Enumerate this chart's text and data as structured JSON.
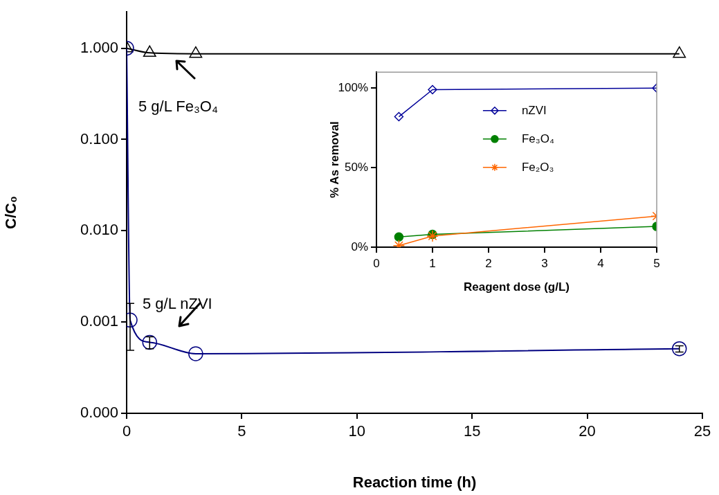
{
  "chart_data": [
    {
      "type": "line",
      "xlabel": "Reaction time (h)",
      "ylabel": "C/C₀",
      "log": "y",
      "grid": false,
      "legend": false,
      "xlim": [
        0,
        25
      ],
      "xticks": [
        0,
        5,
        10,
        15,
        20,
        25
      ],
      "ylim": [
        0.0001,
        2.5
      ],
      "yticks": [
        {
          "value": 0.0001,
          "label": "0.000"
        },
        {
          "value": 0.001,
          "label": "0.001"
        },
        {
          "value": 0.01,
          "label": "0.010"
        },
        {
          "value": 0.1,
          "label": "0.100"
        },
        {
          "value": 1,
          "label": "1.000"
        }
      ],
      "series": [
        {
          "color": "#000000",
          "marker": "triangle",
          "x": [
            0,
            1,
            3,
            24
          ],
          "values": [
            1,
            0.89,
            0.87,
            0.87
          ]
        },
        {
          "color": "#000080",
          "marker": "circle",
          "x": [
            0,
            0.15,
            1,
            3,
            24
          ],
          "values": [
            1,
            0.00105,
            0.0006,
            0.00045,
            0.00051
          ],
          "errors": [
            null,
            [
              0.00049,
              0.0016
            ],
            [
              0.00051,
              0.00069
            ],
            null,
            [
              0.00047,
              0.00055
            ]
          ]
        }
      ],
      "annotations": [
        "5 g/L Fe₃O₄",
        "5 g/L nZVI"
      ]
    },
    {
      "type": "line",
      "xlabel": "Reagent dose (g/L)",
      "ylabel": "% As removal",
      "grid": false,
      "legend": "right",
      "xlim": [
        0,
        5
      ],
      "xticks": [
        0,
        1,
        2,
        3,
        4,
        5
      ],
      "ylim": [
        0,
        110
      ],
      "yticks": [
        {
          "value": 0,
          "label": "0%"
        },
        {
          "value": 50,
          "label": "50%"
        },
        {
          "value": 100,
          "label": "100%"
        }
      ],
      "series": [
        {
          "name": "nZVI",
          "color": "#000099",
          "marker": "diamond",
          "x": [
            0.4,
            1,
            5
          ],
          "values": [
            82,
            99,
            100
          ]
        },
        {
          "name": "Fe₃O₄",
          "color": "#008000",
          "marker": "circle",
          "x": [
            0.4,
            1,
            5
          ],
          "values": [
            6.4,
            8,
            13
          ]
        },
        {
          "name": "Fe₂O₃",
          "color": "#ff6600",
          "marker": "cross",
          "x": [
            0.4,
            1,
            5
          ],
          "values": [
            1,
            7,
            19.5
          ]
        }
      ]
    }
  ]
}
